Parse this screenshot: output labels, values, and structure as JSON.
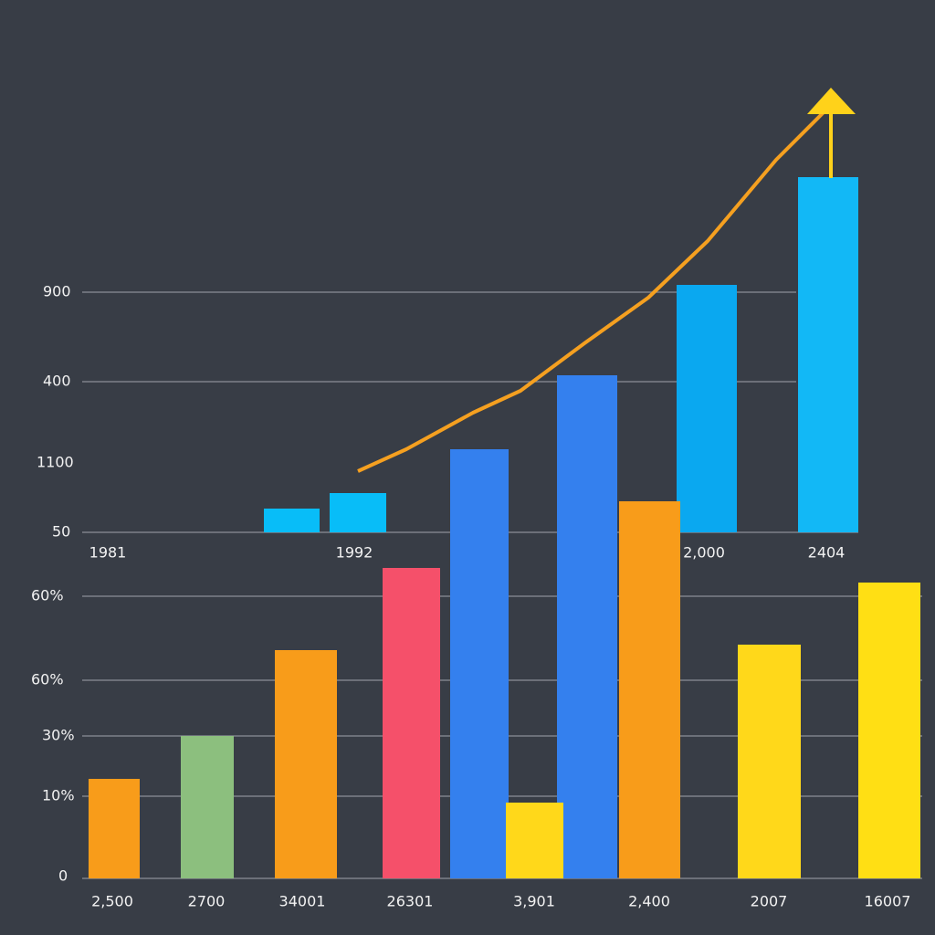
{
  "upper_chart": {
    "y_labels": [
      "900",
      "400",
      "1100",
      "50"
    ],
    "x_labels": [
      "1981",
      "1992",
      "2,000",
      "2404"
    ]
  },
  "lower_chart": {
    "y_labels": [
      "60%",
      "60%",
      "30%",
      "10%",
      "0"
    ],
    "x_labels": [
      "2,500",
      "2700",
      "34001",
      "26301",
      "3,901",
      "2,400",
      "2007",
      "16007"
    ]
  }
}
